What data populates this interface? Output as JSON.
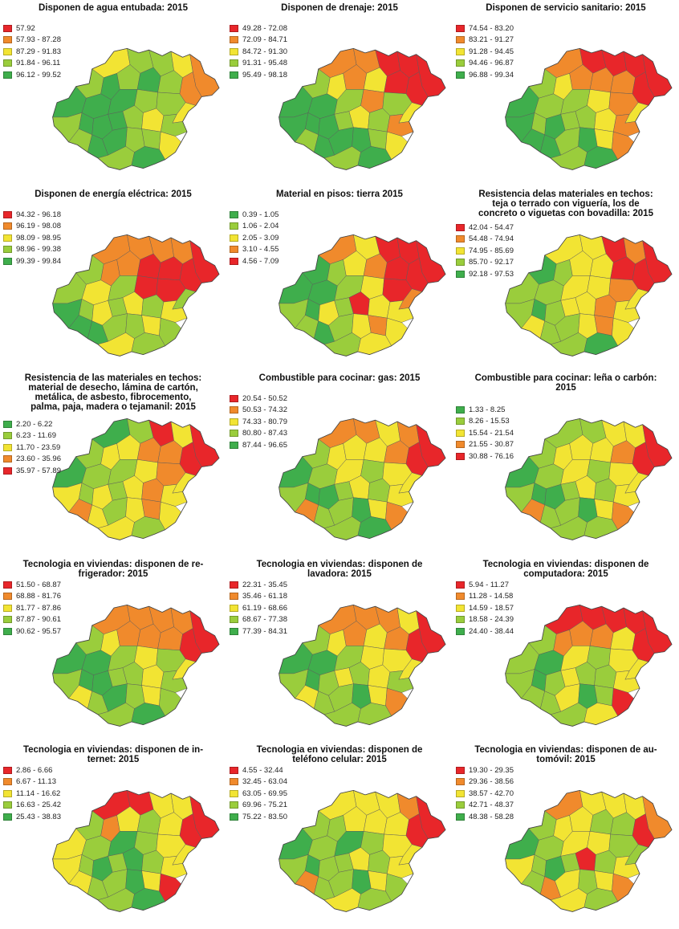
{
  "panels": [
    {
      "title": "Disponen de agua entubada: 2015",
      "legend": [
        [
          "#e8262a",
          "57.92"
        ],
        [
          "#f08a2c",
          "57.93 - 87.28"
        ],
        [
          "#f2e433",
          "87.29 - 91.83"
        ],
        [
          "#9acd3c",
          "91.84 - 96.11"
        ],
        [
          "#3fae4c",
          "96.12 - 99.52"
        ]
      ]
    },
    {
      "title": "Disponen de drenaje: 2015",
      "legend": [
        [
          "#e8262a",
          "49.28 - 72.08"
        ],
        [
          "#f08a2c",
          "72.09 - 84.71"
        ],
        [
          "#f2e433",
          "84.72 - 91.30"
        ],
        [
          "#9acd3c",
          "91.31 - 95.48"
        ],
        [
          "#3fae4c",
          "95.49 - 98.18"
        ]
      ]
    },
    {
      "title": "Disponen de servicio sanitario: 2015",
      "legend": [
        [
          "#e8262a",
          "74.54 - 83.20"
        ],
        [
          "#f08a2c",
          "83.21 - 91.27"
        ],
        [
          "#f2e433",
          "91.28 - 94.45"
        ],
        [
          "#9acd3c",
          "94.46 - 96.87"
        ],
        [
          "#3fae4c",
          "96.88 - 99.34"
        ]
      ]
    },
    {
      "title": "Disponen de energía eléctrica: 2015",
      "legend": [
        [
          "#e8262a",
          "94.32 - 96.18"
        ],
        [
          "#f08a2c",
          "96.19 - 98.08"
        ],
        [
          "#f2e433",
          "98.09 - 98.95"
        ],
        [
          "#9acd3c",
          "98.96 - 99.38"
        ],
        [
          "#3fae4c",
          "99.39 - 99.84"
        ]
      ]
    },
    {
      "title": "Material en pisos: tierra 2015",
      "legend": [
        [
          "#3fae4c",
          "0.39 - 1.05"
        ],
        [
          "#9acd3c",
          "1.06 - 2.04"
        ],
        [
          "#f2e433",
          "2.05 - 3.09"
        ],
        [
          "#f08a2c",
          "3.10 - 4.55"
        ],
        [
          "#e8262a",
          "4.56 - 7.09"
        ]
      ]
    },
    {
      "title": "Resistencia delas materiales en techos:\nteja o terrado con viguería, los de\nconcreto o viguetas con bovadilla: 2015",
      "legend": [
        [
          "#e8262a",
          "42.04 - 54.47"
        ],
        [
          "#f08a2c",
          "54.48 - 74.94"
        ],
        [
          "#f2e433",
          "74.95 - 85.69"
        ],
        [
          "#9acd3c",
          "85.70 - 92.17"
        ],
        [
          "#3fae4c",
          "92.18 - 97.53"
        ]
      ]
    },
    {
      "title": "Resistencia de las materiales en techos:\nmaterial de desecho, lámina de cartón,\nmetálica, de asbesto, fibrocemento,\npalma, paja, madera o tejamanil: 2015",
      "legend": [
        [
          "#3fae4c",
          "2.20 - 6.22"
        ],
        [
          "#9acd3c",
          "6.23 - 11.69"
        ],
        [
          "#f2e433",
          "11.70 - 23.59"
        ],
        [
          "#f08a2c",
          "23.60 - 35.96"
        ],
        [
          "#e8262a",
          "35.97 - 57.89"
        ]
      ]
    },
    {
      "title": "Combustible para cocinar: gas: 2015",
      "legend": [
        [
          "#e8262a",
          "20.54 - 50.52"
        ],
        [
          "#f08a2c",
          "50.53 - 74.32"
        ],
        [
          "#f2e433",
          "74.33 - 80.79"
        ],
        [
          "#9acd3c",
          "80.80 - 87.43"
        ],
        [
          "#3fae4c",
          "87.44 - 96.65"
        ]
      ]
    },
    {
      "title": "Combustible para cocinar: leña o carbón:\n2015",
      "legend": [
        [
          "#3fae4c",
          "1.33 - 8.25"
        ],
        [
          "#9acd3c",
          "8.26 - 15.53"
        ],
        [
          "#f2e433",
          "15.54 - 21.54"
        ],
        [
          "#f08a2c",
          "21.55 - 30.87"
        ],
        [
          "#e8262a",
          "30.88 - 76.16"
        ]
      ]
    },
    {
      "title": "Tecnologia en viviendas: disponen de re-\nfrigerador: 2015",
      "legend": [
        [
          "#e8262a",
          "51.50 - 68.87"
        ],
        [
          "#f08a2c",
          "68.88 - 81.76"
        ],
        [
          "#f2e433",
          "81.77 - 87.86"
        ],
        [
          "#9acd3c",
          "87.87 - 90.61"
        ],
        [
          "#3fae4c",
          "90.62 - 95.57"
        ]
      ]
    },
    {
      "title": "Tecnologia en viviendas: disponen de\nlavadora: 2015",
      "legend": [
        [
          "#e8262a",
          "22.31 - 35.45"
        ],
        [
          "#f08a2c",
          "35.46 - 61.18"
        ],
        [
          "#f2e433",
          "61.19 - 68.66"
        ],
        [
          "#9acd3c",
          "68.67 - 77.38"
        ],
        [
          "#3fae4c",
          "77.39 - 84.31"
        ]
      ]
    },
    {
      "title": "Tecnologia en viviendas: disponen de\ncomputadora: 2015",
      "legend": [
        [
          "#e8262a",
          "5.94 - 11.27"
        ],
        [
          "#f08a2c",
          "11.28 - 14.58"
        ],
        [
          "#f2e433",
          "14.59 - 18.57"
        ],
        [
          "#9acd3c",
          "18.58 - 24.39"
        ],
        [
          "#3fae4c",
          "24.40 - 38.44"
        ]
      ]
    },
    {
      "title": "Tecnologia en viviendas: disponen de in-\nternet: 2015",
      "legend": [
        [
          "#e8262a",
          "2.86 - 6.66"
        ],
        [
          "#f08a2c",
          "6.67 - 11.13"
        ],
        [
          "#f2e433",
          "11.14 - 16.62"
        ],
        [
          "#9acd3c",
          "16.63 - 25.42"
        ],
        [
          "#3fae4c",
          "25.43 - 38.83"
        ]
      ]
    },
    {
      "title": "Tecnologia en viviendas: disponen de\nteléfono celular: 2015",
      "legend": [
        [
          "#e8262a",
          "4.55 - 32.44"
        ],
        [
          "#f08a2c",
          "32.45 - 63.04"
        ],
        [
          "#f2e433",
          "63.05 - 69.95"
        ],
        [
          "#9acd3c",
          "69.96 - 75.21"
        ],
        [
          "#3fae4c",
          "75.22 - 83.50"
        ]
      ]
    },
    {
      "title": "Tecnologia en viviendas: disponen de au-\ntomóvil: 2015",
      "legend": [
        [
          "#e8262a",
          "19.30 - 29.35"
        ],
        [
          "#f08a2c",
          "29.36 - 38.56"
        ],
        [
          "#f2e433",
          "38.57 - 42.70"
        ],
        [
          "#9acd3c",
          "42.71 - 48.37"
        ],
        [
          "#3fae4c",
          "48.38 - 58.28"
        ]
      ]
    }
  ]
}
